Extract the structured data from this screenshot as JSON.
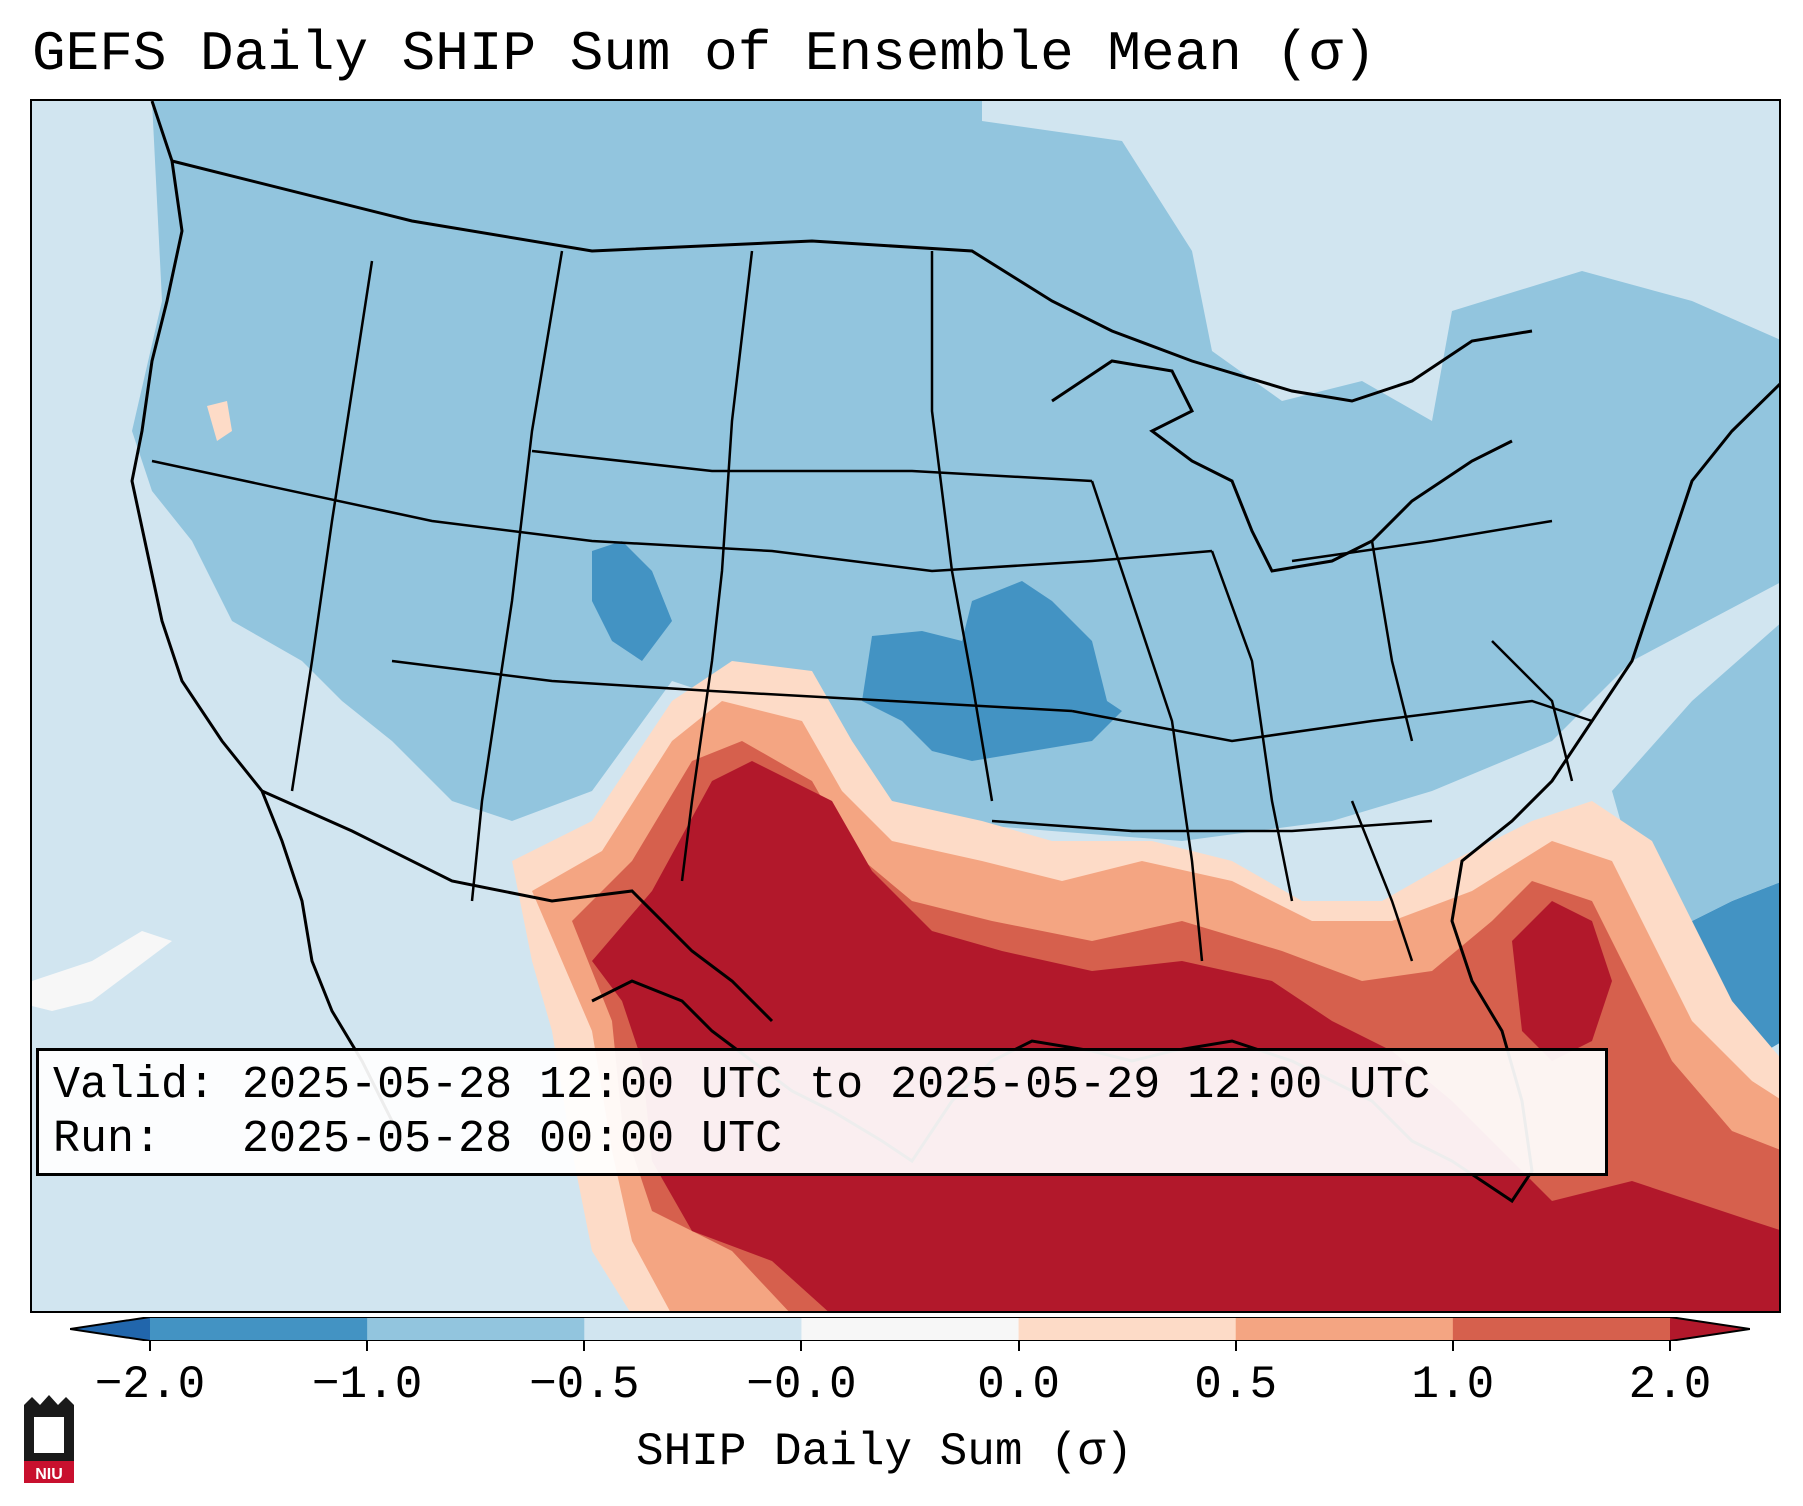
{
  "title": "GEFS Daily SHIP Sum of Ensemble Mean (σ)",
  "infobox": {
    "valid_label": "Valid:",
    "valid_value": "2025-05-28 12:00 UTC to 2025-05-29 12:00 UTC",
    "run_label": "Run:",
    "run_value": "2025-05-28 00:00 UTC"
  },
  "colorbar": {
    "label": "SHIP Daily Sum (σ)",
    "ticks": [
      "−2.0",
      "−1.0",
      "−0.5",
      "−0.0",
      "0.0",
      "0.5",
      "1.0",
      "2.0"
    ],
    "colors": [
      "#2166ac",
      "#4393c3",
      "#92c5de",
      "#d1e5f0",
      "#f7f7f7",
      "#fddbc7",
      "#f4a582",
      "#d6604d",
      "#b2182b"
    ]
  },
  "map": {
    "region": "Continental United States",
    "field": "SHIP daily sum anomaly",
    "colors": {
      "strong_negative": "#4393c3",
      "negative": "#92c5de",
      "weak_negative": "#d1e5f0",
      "neutral": "#f7f7f7",
      "weak_positive": "#fddbc7",
      "positive": "#f4a582",
      "moderate_positive": "#d6604d",
      "strong_positive": "#b2182b"
    }
  },
  "logo": {
    "text": "NIU",
    "color": "#c8102e"
  }
}
